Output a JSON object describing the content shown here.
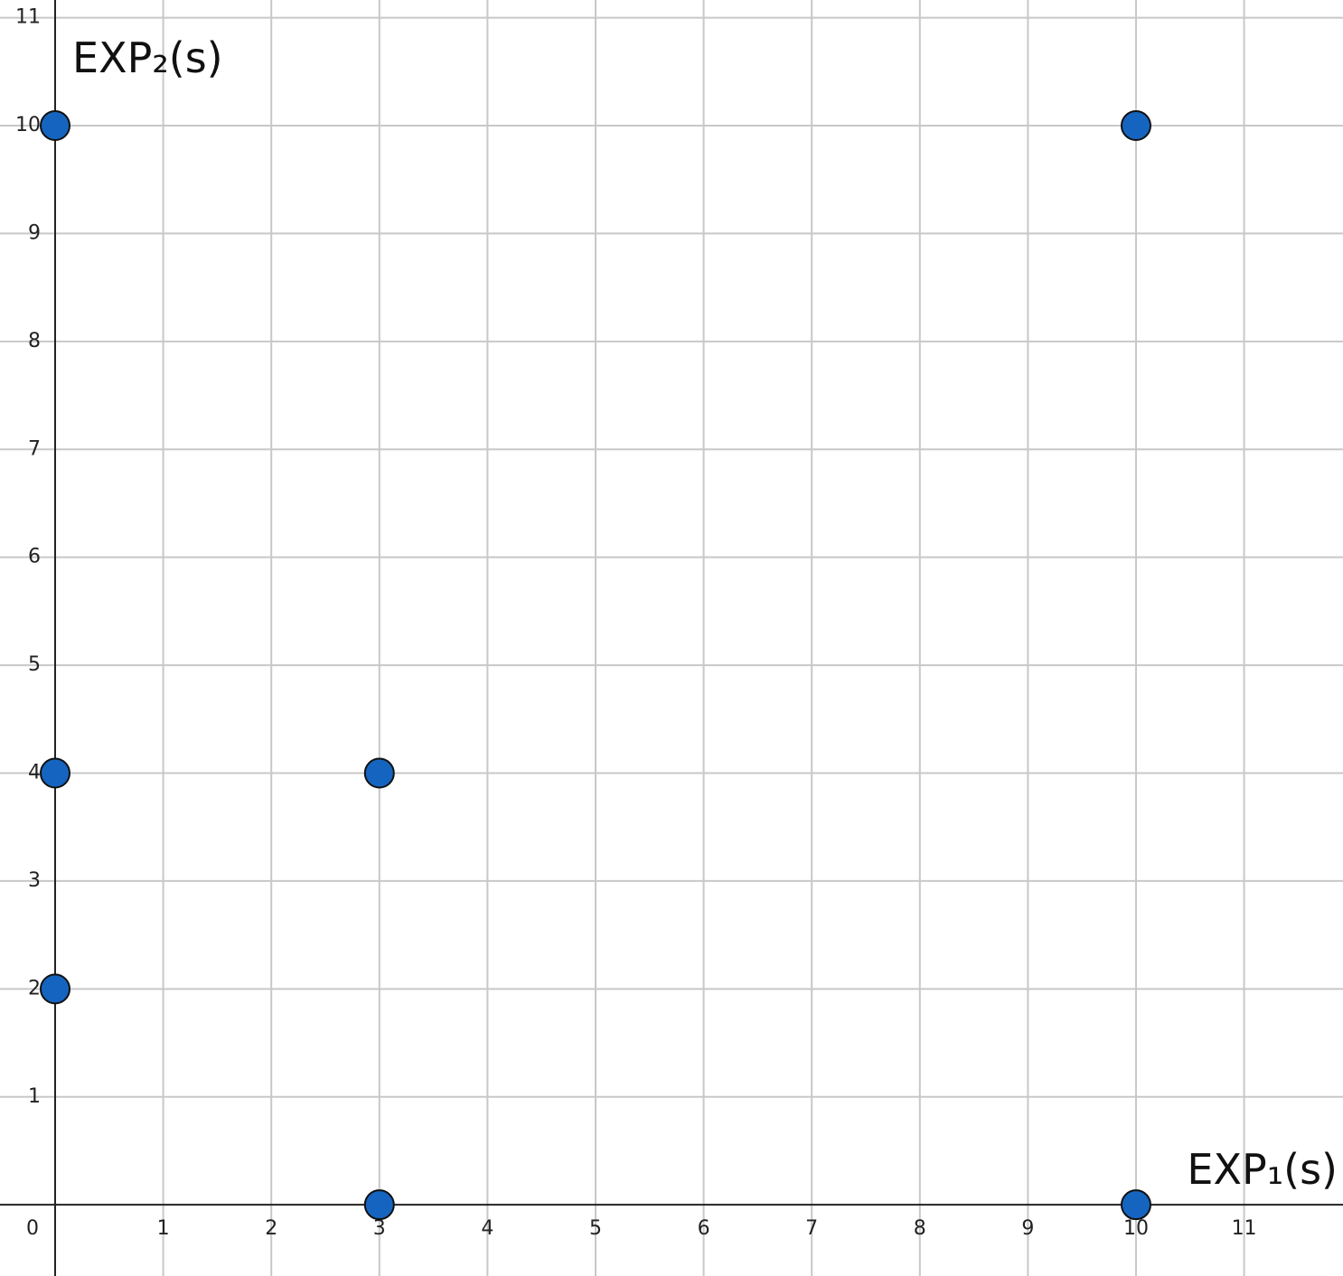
{
  "chart_data": {
    "type": "scatter",
    "x_label": "EXP₁(s)",
    "y_label": "EXP₂(s)",
    "series": [
      {
        "color": "#1565c0",
        "x": [
          0,
          10,
          0,
          3,
          0,
          3,
          10
        ],
        "values": [
          10,
          10,
          4,
          4,
          2,
          0,
          0
        ]
      }
    ],
    "xlim": [
      -0.51,
      11.915
    ],
    "ylim": [
      -0.66,
      11.164
    ],
    "xticks": [
      0,
      1,
      2,
      3,
      4,
      5,
      6,
      7,
      8,
      9,
      10,
      11
    ],
    "yticks": [
      1,
      2,
      3,
      4,
      5,
      6,
      7,
      8,
      9,
      10,
      11
    ],
    "grid": true
  }
}
